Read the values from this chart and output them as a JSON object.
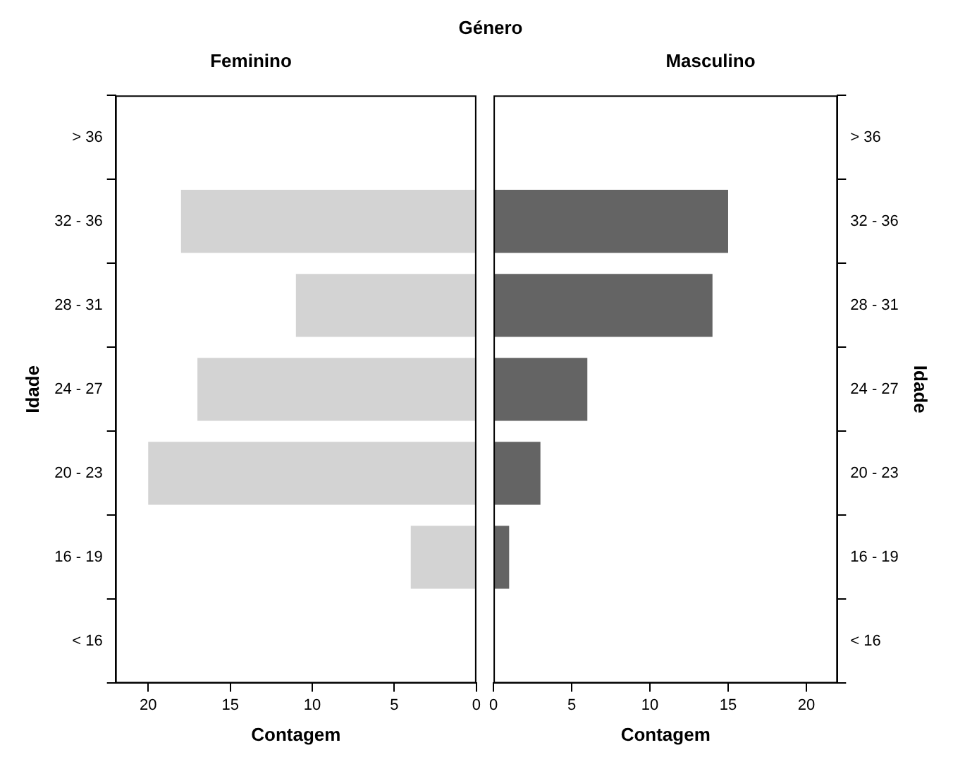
{
  "chart_data": [
    {
      "type": "bar",
      "orientation": "horizontal",
      "annotations": [
        "Género"
      ],
      "title": "Feminino",
      "xlabel": "Contagem",
      "ylabel": "Idade",
      "categories": [
        "> 36",
        "32 - 36",
        "28 - 31",
        "24 - 27",
        "20 - 23",
        "16 - 19",
        "< 16"
      ],
      "values": [
        0,
        18,
        11,
        17,
        20,
        4,
        0
      ],
      "color": "#d3d3d3",
      "xlim": [
        22,
        0
      ],
      "xticks": [
        20,
        15,
        10,
        5,
        0
      ]
    },
    {
      "type": "bar",
      "orientation": "horizontal",
      "title": "Masculino",
      "xlabel": "Contagem",
      "ylabel": "Idade",
      "categories": [
        "> 36",
        "32 - 36",
        "28 - 31",
        "24 - 27",
        "20 - 23",
        "16 - 19",
        "< 16"
      ],
      "values": [
        0,
        15,
        14,
        6,
        3,
        1,
        0
      ],
      "color": "#646464",
      "xlim": [
        0,
        22
      ],
      "xticks": [
        0,
        5,
        10,
        15,
        20
      ]
    }
  ]
}
